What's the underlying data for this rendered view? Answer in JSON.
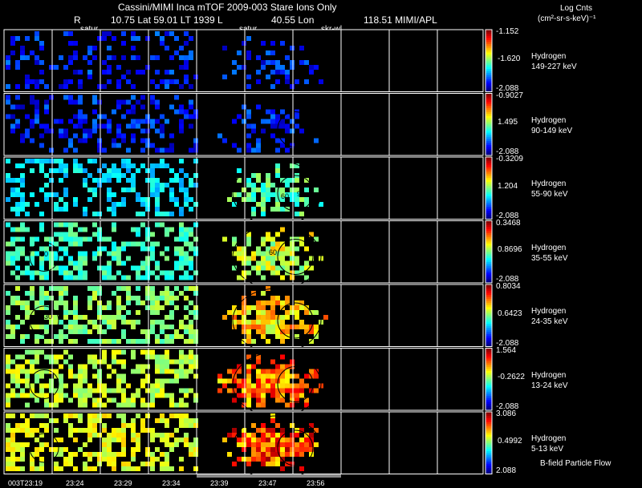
{
  "header": {
    "line1": "Cassini/MIMI Inca mTOF  2009-003   Stare   Ions Only",
    "line2_r": "R",
    "line2_vals": "10.75 Lat 59.01 LT 1939 L",
    "line2_lon": "40.55 Lon",
    "line2_end": "118.51  MIMI/APL",
    "units_title": "Log Cnts",
    "units": "(cm²-sr-s-keV)⁻¹",
    "satur_left": "satur",
    "satur_mid": "satur",
    "skr_label": "skr-wl"
  },
  "time_labels": [
    "003T23:19",
    "23:24",
    "23:29",
    "23:34",
    "23:39",
    "23:47",
    "23:56"
  ],
  "footer_note": "B-field Particle Flow",
  "contour_labels": [
    "60",
    "90",
    "30",
    "60",
    "90",
    "30"
  ],
  "colors": {
    "background": "#000000",
    "grid": "#ffffff",
    "contour": "#000000"
  },
  "chart_data": {
    "type": "heatmap",
    "title": "Cassini/MIMI Inca mTOF 2009-003 Stare Ions Only",
    "colorbar_label": "Log Cnts (cm²-sr-s-keV)⁻¹",
    "panels": [
      {
        "species": "Hydrogen",
        "energy": "149-227 keV",
        "max": "-1.152",
        "mid": "-1.620",
        "min": "-2.088",
        "intensity": 0.15
      },
      {
        "species": "Hydrogen",
        "energy": "90-149 keV",
        "max": "-0.9027",
        "mid": "1.495",
        "min": "-2.088",
        "intensity": 0.25
      },
      {
        "species": "Hydrogen",
        "energy": "55-90 keV",
        "max": "-0.3209",
        "mid": "1.204",
        "min": "-2.088",
        "intensity": 0.45
      },
      {
        "species": "Hydrogen",
        "energy": "35-55 keV",
        "max": "0.3468",
        "mid": "0.8696",
        "min": "-2.088",
        "intensity": 0.6
      },
      {
        "species": "Hydrogen",
        "energy": "24-35 keV",
        "max": "0.8034",
        "mid": "0.6423",
        "min": "-2.088",
        "intensity": 0.72
      },
      {
        "species": "Hydrogen",
        "energy": "13-24 keV",
        "max": "1.564",
        "mid": "-0.2622",
        "min": "-2.088",
        "intensity": 0.82
      },
      {
        "species": "Hydrogen",
        "energy": "5-13 keV",
        "max": "3.086",
        "mid": "0.4992",
        "min": "2.088",
        "intensity": 0.88
      }
    ]
  }
}
